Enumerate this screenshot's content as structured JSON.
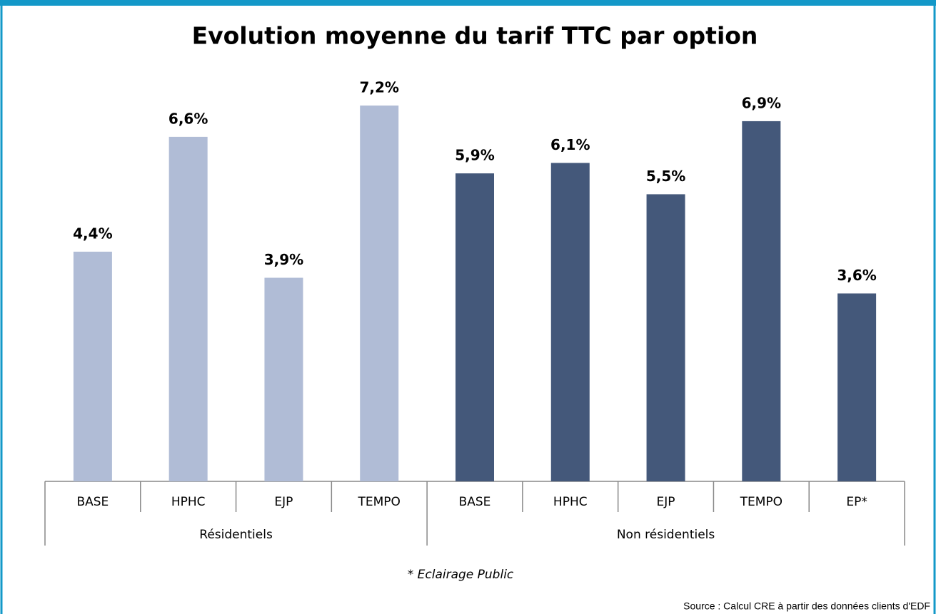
{
  "chart_data": {
    "type": "bar",
    "title": "Evolution moyenne du tarif TTC par option",
    "groups": [
      {
        "name": "Résidentiels",
        "color": "#b0bcd6",
        "categories": [
          "BASE",
          "HPHC",
          "EJP",
          "TEMPO"
        ],
        "values": [
          4.4,
          6.6,
          3.9,
          7.2
        ],
        "value_labels": [
          "4,4%",
          "6,6%",
          "3,9%",
          "7,2%"
        ]
      },
      {
        "name": "Non résidentiels",
        "color": "#44587a",
        "categories": [
          "BASE",
          "HPHC",
          "EJP",
          "TEMPO",
          "EP*"
        ],
        "values": [
          5.9,
          6.1,
          5.5,
          6.9,
          3.6
        ],
        "value_labels": [
          "5,9%",
          "6,1%",
          "5,5%",
          "6,9%",
          "3,6%"
        ]
      }
    ],
    "ylim": [
      0,
      8
    ],
    "footnote": "* Eclairage Public",
    "source": "Source : Calcul CRE à partir des données clients d'EDF"
  }
}
